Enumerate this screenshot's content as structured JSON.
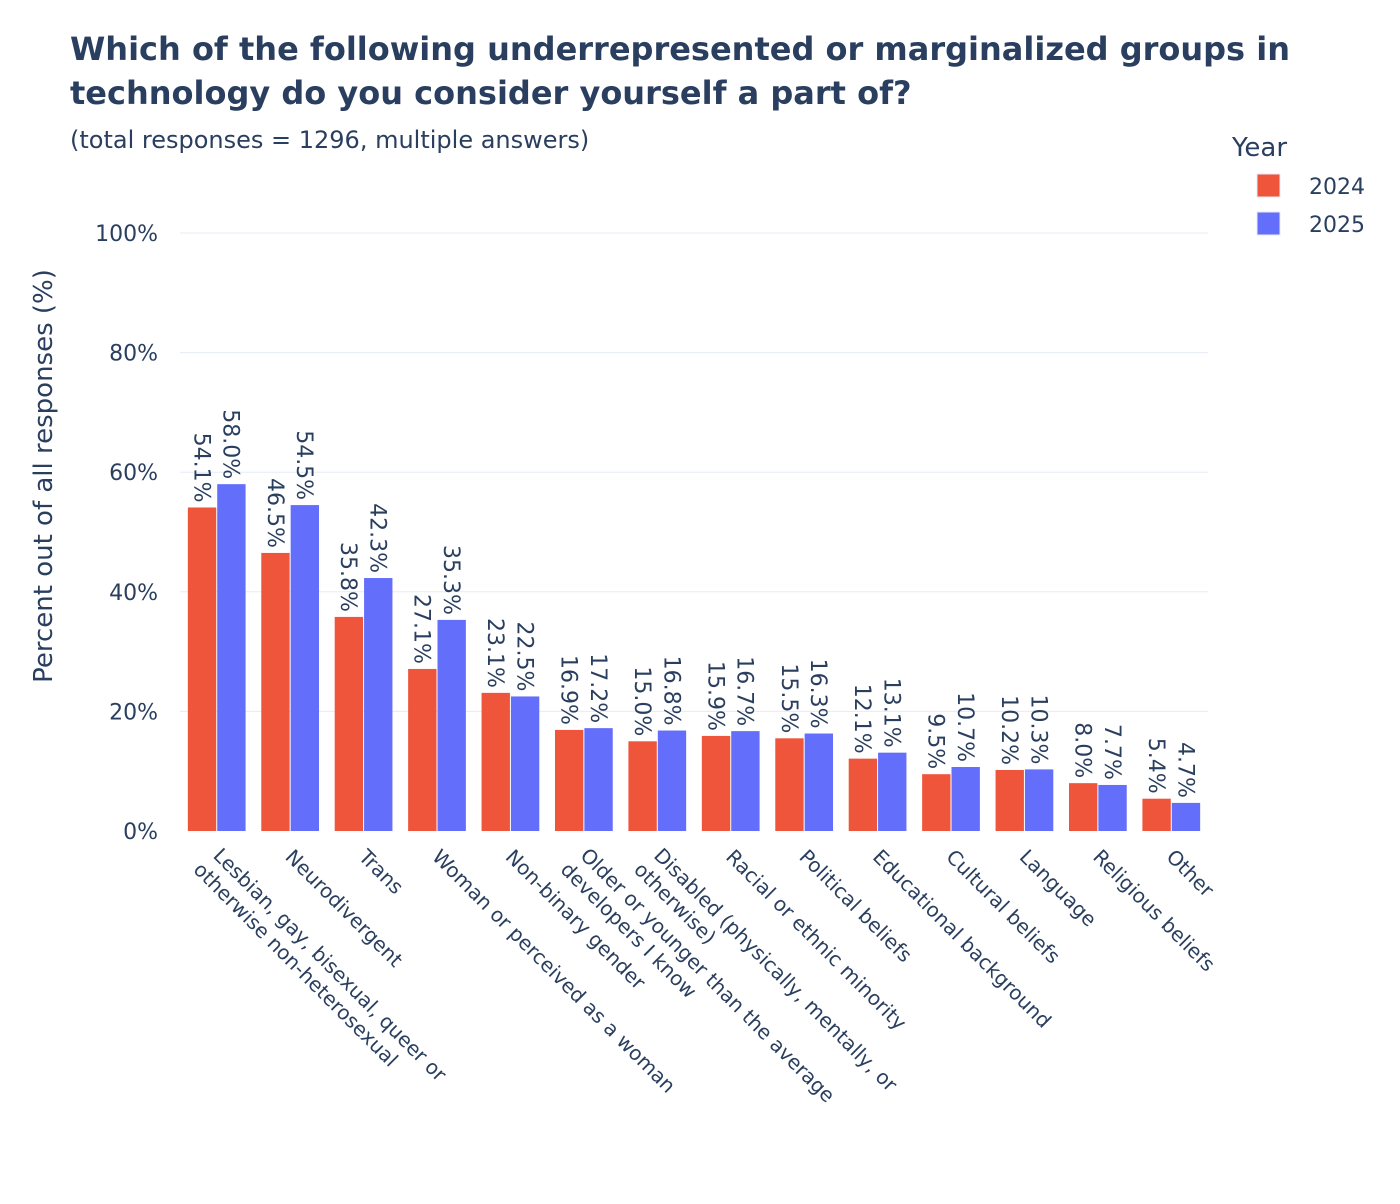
{
  "chart_data": {
    "type": "bar",
    "title_lines": [
      "Which of the following underrepresented or marginalized groups in",
      "technology do you consider yourself a part of?"
    ],
    "subtitle": "(total responses = 1296, multiple answers)",
    "xlabel": "",
    "ylabel": "Percent out of all responses (%)",
    "ylim": [
      0,
      100
    ],
    "yticks": [
      0,
      20,
      40,
      60,
      80,
      100
    ],
    "ytick_labels": [
      "0%",
      "20%",
      "40%",
      "60%",
      "80%",
      "100%"
    ],
    "grid": true,
    "legend": {
      "title": "Year",
      "placement": "top-right"
    },
    "categories": [
      [
        "Lesbian, gay, bisexual, queer or",
        "otherwise non-heterosexual"
      ],
      [
        "Neurodivergent"
      ],
      [
        "Trans"
      ],
      [
        "Woman or perceived as a woman"
      ],
      [
        "Non-binary gender"
      ],
      [
        "Older or younger than the average",
        "developers I know"
      ],
      [
        "Disabled (physically, mentally, or",
        "otherwise)"
      ],
      [
        "Racial or ethnic minority"
      ],
      [
        "Political beliefs"
      ],
      [
        "Educational background"
      ],
      [
        "Cultural beliefs"
      ],
      [
        "Language"
      ],
      [
        "Religious beliefs"
      ],
      [
        "Other"
      ]
    ],
    "series": [
      {
        "name": "2024",
        "color": "#EF553B",
        "values": [
          54.1,
          46.5,
          35.8,
          27.1,
          23.1,
          16.9,
          15.0,
          15.9,
          15.5,
          12.1,
          9.5,
          10.2,
          8.0,
          5.4
        ]
      },
      {
        "name": "2025",
        "color": "#636EFA",
        "values": [
          58.0,
          54.5,
          42.3,
          35.3,
          22.5,
          17.2,
          16.8,
          16.7,
          16.3,
          13.1,
          10.7,
          10.3,
          7.7,
          4.7
        ]
      }
    ]
  }
}
